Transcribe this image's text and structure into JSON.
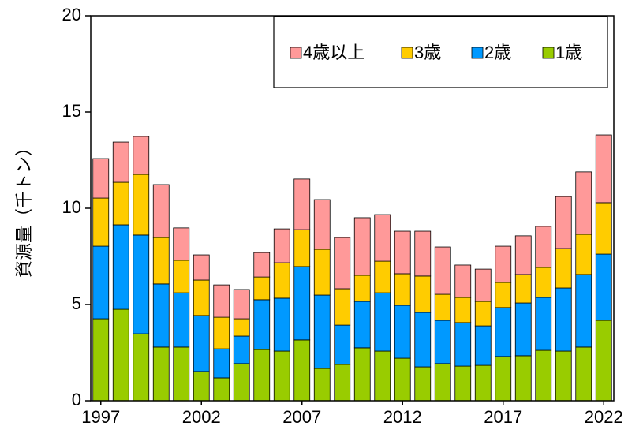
{
  "chart_data": {
    "type": "stacked-bar",
    "y_label": "資源量（千トン）",
    "categories": [
      "1997",
      null,
      null,
      null,
      null,
      "2002",
      null,
      null,
      null,
      null,
      "2007",
      null,
      null,
      null,
      null,
      "2012",
      null,
      null,
      null,
      null,
      "2017",
      null,
      null,
      null,
      null,
      "2022"
    ],
    "series": [
      {
        "name": "4歳以上",
        "color": "#ff9999",
        "values": [
          2.05,
          2.09,
          1.97,
          2.75,
          1.68,
          1.31,
          1.68,
          1.52,
          1.27,
          1.76,
          2.63,
          2.58,
          2.66,
          2.99,
          2.42,
          2.21,
          2.33,
          2.46,
          1.68,
          1.68,
          1.88,
          2.01,
          2.13,
          2.7,
          3.24,
          3.52
        ]
      },
      {
        "name": "3歳",
        "color": "#ffcc00",
        "values": [
          2.5,
          2.21,
          3.15,
          2.41,
          1.69,
          1.84,
          1.64,
          0.9,
          1.18,
          1.84,
          1.92,
          2.38,
          1.89,
          1.36,
          1.64,
          1.64,
          1.89,
          1.35,
          1.31,
          1.27,
          1.31,
          1.48,
          1.56,
          2.05,
          2.09,
          2.67
        ]
      },
      {
        "name": "2歳",
        "color": "#0099ff",
        "values": [
          3.77,
          4.39,
          5.13,
          3.28,
          2.82,
          2.91,
          1.51,
          1.43,
          2.59,
          2.75,
          3.81,
          3.81,
          2.04,
          2.41,
          3.03,
          2.75,
          2.83,
          2.25,
          2.26,
          2.05,
          2.54,
          2.74,
          2.75,
          3.28,
          3.77,
          3.44
        ]
      },
      {
        "name": "1歳",
        "color": "#99cc00",
        "values": [
          4.26,
          4.75,
          3.48,
          2.79,
          2.79,
          1.52,
          1.19,
          1.93,
          2.66,
          2.58,
          3.16,
          1.68,
          1.89,
          2.75,
          2.58,
          2.21,
          1.76,
          1.93,
          1.8,
          1.84,
          2.3,
          2.34,
          2.62,
          2.58,
          2.79,
          4.18
        ]
      }
    ],
    "ylim": [
      0,
      20
    ],
    "yticks": [
      0,
      5,
      10,
      15,
      20
    ]
  }
}
